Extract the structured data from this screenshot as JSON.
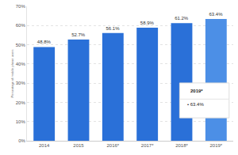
{
  "chart_data": {
    "type": "bar",
    "y_label": "Percentage of mobile phone users",
    "categories": [
      "2014",
      "2015",
      "2016*",
      "2017*",
      "2018*",
      "2019*"
    ],
    "values": [
      48.8,
      52.7,
      56.1,
      58.9,
      61.2,
      63.4
    ],
    "value_labels": [
      "48.8%",
      "52.7%",
      "56.1%",
      "58.9%",
      "61.2%",
      "63.4%"
    ],
    "colors": [
      "#2a70d8",
      "#2a70d8",
      "#2a70d8",
      "#2a70d8",
      "#2a70d8",
      "#4c8fe6"
    ],
    "ylim": [
      0,
      70
    ],
    "yticks": [
      {
        "value": 0,
        "label": "0%"
      },
      {
        "value": 10,
        "label": "10%"
      },
      {
        "value": 20,
        "label": "20%"
      },
      {
        "value": 30,
        "label": "30%"
      },
      {
        "value": 40,
        "label": "40%"
      },
      {
        "value": 50,
        "label": "50%"
      },
      {
        "value": 60,
        "label": "60%"
      },
      {
        "value": 70,
        "label": "70%"
      }
    ],
    "grid": true,
    "data_labels": true,
    "annotations": [
      "2019*",
      "• 63.4%"
    ]
  }
}
